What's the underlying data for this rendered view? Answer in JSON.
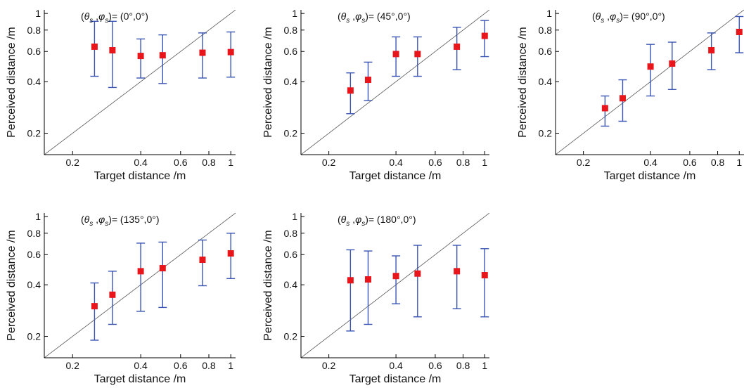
{
  "chart_data": [
    {
      "type": "scatter",
      "title": "(θs ,φs )= (0°,0°)",
      "title_parts": {
        "open": "(",
        "theta": "θ",
        "s1": "s",
        "comma": " ,",
        "phi": "φ",
        "s2": "s",
        "tail": ")= (0°,0°)"
      },
      "xlabel": "Target distance /m",
      "ylabel": "Perceived distance /m",
      "xscale": "log",
      "yscale": "log",
      "xlim": [
        0.15,
        1.05
      ],
      "ylim": [
        0.15,
        1.05
      ],
      "xticks": [
        0.2,
        0.4,
        0.6,
        0.8,
        1
      ],
      "xtick_labels": [
        "0.2",
        "0.4",
        "0.6",
        "0.8",
        "1"
      ],
      "yticks": [
        0.2,
        0.4,
        0.6,
        0.8,
        1
      ],
      "ytick_labels": [
        "0.2",
        "0.4",
        "0.6",
        "0.8",
        "1"
      ],
      "reference_line": "y = x",
      "grid": false,
      "marker_color": "#e8151b",
      "errorbar_color": "#3a55b4",
      "x": [
        0.25,
        0.3,
        0.4,
        0.5,
        0.75,
        1
      ],
      "y": [
        0.64,
        0.61,
        0.565,
        0.57,
        0.59,
        0.595
      ],
      "y_lower": [
        0.43,
        0.37,
        0.42,
        0.39,
        0.42,
        0.425
      ],
      "y_upper": [
        0.9,
        0.9,
        0.71,
        0.75,
        0.77,
        0.78
      ]
    },
    {
      "type": "scatter",
      "title": "(θs ,φs )= (45°,0°)",
      "title_parts": {
        "open": "(",
        "theta": "θ",
        "s1": "s",
        "comma": " ,",
        "phi": "φ",
        "s2": "s",
        "tail": ")= (45°,0°)"
      },
      "xlabel": "Target distance /m",
      "ylabel": "Perceived distance /m",
      "xscale": "log",
      "yscale": "log",
      "xlim": [
        0.15,
        1.05
      ],
      "ylim": [
        0.15,
        1.05
      ],
      "xticks": [
        0.2,
        0.4,
        0.6,
        0.8,
        1
      ],
      "xtick_labels": [
        "0.2",
        "0.4",
        "0.6",
        "0.8",
        "1"
      ],
      "yticks": [
        0.2,
        0.4,
        0.6,
        0.8,
        1
      ],
      "ytick_labels": [
        "0.2",
        "0.4",
        "0.6",
        "0.8",
        "1"
      ],
      "reference_line": "y = x",
      "grid": false,
      "marker_color": "#e8151b",
      "errorbar_color": "#3a55b4",
      "x": [
        0.25,
        0.3,
        0.4,
        0.5,
        0.75,
        1
      ],
      "y": [
        0.355,
        0.41,
        0.58,
        0.58,
        0.64,
        0.74
      ],
      "y_lower": [
        0.26,
        0.31,
        0.43,
        0.43,
        0.47,
        0.56
      ],
      "y_upper": [
        0.45,
        0.52,
        0.73,
        0.73,
        0.83,
        0.91
      ]
    },
    {
      "type": "scatter",
      "title": "(θs ,φs )= (90°,0°)",
      "title_parts": {
        "open": "(",
        "theta": "θ",
        "s1": "s",
        "comma": " ,",
        "phi": "φ",
        "s2": "s",
        "tail": ")= (90°,0°)"
      },
      "xlabel": "Target distance /m",
      "ylabel": "Perceived distance /m",
      "xscale": "log",
      "yscale": "log",
      "xlim": [
        0.15,
        1.05
      ],
      "ylim": [
        0.15,
        1.05
      ],
      "xticks": [
        0.2,
        0.4,
        0.6,
        0.8,
        1
      ],
      "xtick_labels": [
        "0.2",
        "0.4",
        "0.6",
        "0.8",
        "1"
      ],
      "yticks": [
        0.2,
        0.4,
        0.6,
        0.8,
        1
      ],
      "ytick_labels": [
        "0.2",
        "0.4",
        "0.6",
        "0.8",
        "1"
      ],
      "reference_line": "y = x",
      "grid": false,
      "marker_color": "#e8151b",
      "errorbar_color": "#3a55b4",
      "x": [
        0.25,
        0.3,
        0.4,
        0.5,
        0.75,
        1
      ],
      "y": [
        0.28,
        0.32,
        0.49,
        0.51,
        0.61,
        0.78
      ],
      "y_lower": [
        0.22,
        0.235,
        0.33,
        0.36,
        0.47,
        0.59
      ],
      "y_upper": [
        0.33,
        0.41,
        0.66,
        0.68,
        0.77,
        0.96
      ]
    },
    {
      "type": "scatter",
      "title": "(θs ,φs )= (135°,0°)",
      "title_parts": {
        "open": "(",
        "theta": "θ",
        "s1": "s",
        "comma": " ,",
        "phi": "φ",
        "s2": "s",
        "tail": ")= (135°,0°)"
      },
      "xlabel": "Target distance /m",
      "ylabel": "Perceived distance /m",
      "xscale": "log",
      "yscale": "log",
      "xlim": [
        0.15,
        1.05
      ],
      "ylim": [
        0.15,
        1.05
      ],
      "xticks": [
        0.2,
        0.4,
        0.6,
        0.8,
        1
      ],
      "xtick_labels": [
        "0.2",
        "0.4",
        "0.6",
        "0.8",
        "1"
      ],
      "yticks": [
        0.2,
        0.4,
        0.6,
        0.8,
        1
      ],
      "ytick_labels": [
        "0.2",
        "0.4",
        "0.6",
        "0.8",
        "1"
      ],
      "reference_line": "y = x",
      "grid": false,
      "marker_color": "#e8151b",
      "errorbar_color": "#3a55b4",
      "x": [
        0.25,
        0.3,
        0.4,
        0.5,
        0.75,
        1
      ],
      "y": [
        0.3,
        0.35,
        0.48,
        0.5,
        0.56,
        0.61
      ],
      "y_lower": [
        0.19,
        0.235,
        0.28,
        0.295,
        0.395,
        0.435
      ],
      "y_upper": [
        0.41,
        0.48,
        0.7,
        0.71,
        0.73,
        0.8
      ]
    },
    {
      "type": "scatter",
      "title": "(θs ,φs )= (180°,0°)",
      "title_parts": {
        "open": "(",
        "theta": "θ",
        "s1": "s",
        "comma": " ,",
        "phi": "φ",
        "s2": "s",
        "tail": ")= (180°,0°)"
      },
      "xlabel": "Target distance /m",
      "ylabel": "Perceived distance /m",
      "xscale": "log",
      "yscale": "log",
      "xlim": [
        0.15,
        1.05
      ],
      "ylim": [
        0.15,
        1.05
      ],
      "xticks": [
        0.2,
        0.4,
        0.6,
        0.8,
        1
      ],
      "xtick_labels": [
        "0.2",
        "0.4",
        "0.6",
        "0.8",
        "1"
      ],
      "yticks": [
        0.2,
        0.4,
        0.6,
        0.8,
        1
      ],
      "ytick_labels": [
        "0.2",
        "0.4",
        "0.6",
        "0.8",
        "1"
      ],
      "reference_line": "y = x",
      "grid": false,
      "marker_color": "#e8151b",
      "errorbar_color": "#3a55b4",
      "x": [
        0.25,
        0.3,
        0.4,
        0.5,
        0.75,
        1
      ],
      "y": [
        0.425,
        0.43,
        0.45,
        0.465,
        0.48,
        0.455
      ],
      "y_lower": [
        0.215,
        0.235,
        0.31,
        0.26,
        0.29,
        0.26
      ],
      "y_upper": [
        0.64,
        0.63,
        0.59,
        0.68,
        0.68,
        0.65
      ]
    }
  ]
}
